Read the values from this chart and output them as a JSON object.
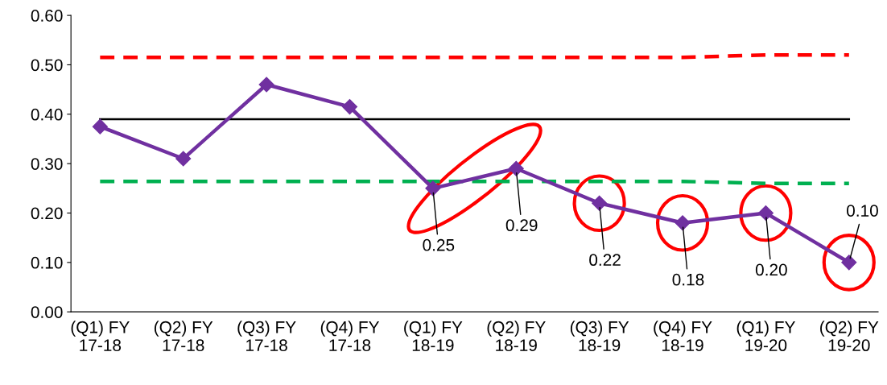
{
  "chart_data": {
    "type": "line",
    "categories": [
      "(Q1) FY\n17-18",
      "(Q2) FY\n17-18",
      "(Q3) FY\n17-18",
      "(Q4) FY\n17-18",
      "(Q1) FY\n18-19",
      "(Q2) FY\n18-19",
      "(Q3) FY\n18-19",
      "(Q4) FY\n18-19",
      "(Q1) FY\n19-20",
      "(Q2) FY\n19-20"
    ],
    "series": [
      {
        "color": "#ff0000",
        "line_style": "dashed",
        "marker": "none",
        "values": [
          0.515,
          0.515,
          0.515,
          0.515,
          0.515,
          0.515,
          0.515,
          0.515,
          0.52,
          0.52
        ]
      },
      {
        "color": "#000000",
        "line_style": "solid",
        "marker": "none",
        "values": [
          0.39,
          0.39,
          0.39,
          0.39,
          0.39,
          0.39,
          0.39,
          0.39,
          0.39,
          0.39
        ]
      },
      {
        "color": "#00b050",
        "line_style": "dashed",
        "marker": "none",
        "values": [
          0.264,
          0.264,
          0.264,
          0.264,
          0.264,
          0.264,
          0.264,
          0.264,
          0.26,
          0.26
        ]
      },
      {
        "color": "#7030a0",
        "line_style": "solid",
        "marker": "diamond",
        "values": [
          0.375,
          0.31,
          0.46,
          0.415,
          0.25,
          0.29,
          0.22,
          0.18,
          0.2,
          0.1
        ],
        "value_labels": [
          null,
          null,
          null,
          null,
          "0.25",
          "0.29",
          "0.22",
          "0.18",
          "0.20",
          "0.10"
        ]
      }
    ],
    "ylim": [
      0,
      0.6
    ],
    "yticks": [
      {
        "value": 0,
        "label": "0.00"
      },
      {
        "value": 0.1,
        "label": "0.10"
      },
      {
        "value": 0.2,
        "label": "0.20"
      },
      {
        "value": 0.3,
        "label": "0.30"
      },
      {
        "value": 0.4,
        "label": "0.40"
      },
      {
        "value": 0.5,
        "label": "0.50"
      },
      {
        "value": 0.6,
        "label": "0.60"
      }
    ],
    "grid": false,
    "legend": false
  }
}
